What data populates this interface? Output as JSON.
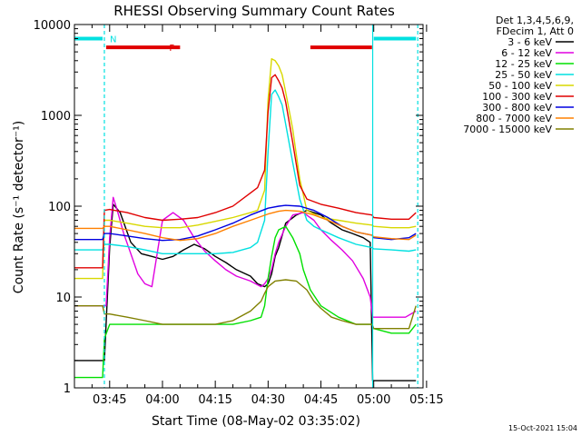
{
  "chart_data": {
    "type": "line",
    "title": "RHESSI Observing Summary Count Rates",
    "xlabel": "Start Time (08-May-02 03:35:02)",
    "ylabel": "Count Rate (s⁻¹ detector⁻¹)",
    "x_scale": "time (minutes after 03:35:02)",
    "y_scale": "log",
    "xlim": [
      0,
      99
    ],
    "ylim": [
      1,
      10000
    ],
    "xticks": [
      {
        "label": "03:45",
        "value": 10
      },
      {
        "label": "04:00",
        "value": 25
      },
      {
        "label": "04:15",
        "value": 40
      },
      {
        "label": "04:30",
        "value": 55
      },
      {
        "label": "04:45",
        "value": 70
      },
      {
        "label": "05:00",
        "value": 85
      },
      {
        "label": "05:15",
        "value": 100
      }
    ],
    "yticks": [
      {
        "label": "1",
        "value": 1
      },
      {
        "label": "10",
        "value": 10
      },
      {
        "label": "100",
        "value": 100
      },
      {
        "label": "1000",
        "value": 1000
      },
      {
        "label": "10000",
        "value": 10000
      }
    ],
    "legend_position": "right, outside plot",
    "legend_header": [
      "Det 1,3,4,5,6,9,",
      "FDecim 1, Att 0"
    ],
    "flags": [
      {
        "label": "N",
        "color": "#00e0e0",
        "segments": [
          [
            0,
            8
          ],
          [
            85,
            97
          ]
        ],
        "y": 7000
      },
      {
        "label": "F",
        "color": "#e00000",
        "segments": [
          [
            9,
            30
          ],
          [
            67,
            84.5
          ]
        ],
        "y": 5600
      }
    ],
    "vlines": [
      {
        "x": 8.5,
        "color": "#00e0e0",
        "dashed": true
      },
      {
        "x": 84.7,
        "color": "#00e0e0",
        "dashed": false
      },
      {
        "x": 97.5,
        "color": "#00e0e0",
        "dashed": true
      }
    ],
    "series": [
      {
        "name": "3 - 6 keV",
        "color": "#000000",
        "x": [
          0,
          5,
          8,
          8.5,
          10,
          11,
          13,
          16,
          19,
          22,
          25,
          28,
          31,
          34,
          37,
          40,
          43,
          46,
          50,
          52,
          54,
          55,
          56,
          57,
          58,
          60,
          63,
          66,
          68,
          70,
          73,
          76,
          79,
          82,
          84,
          84.7,
          86,
          90,
          94,
          97
        ],
        "y": [
          2,
          2,
          2,
          2,
          35,
          105,
          85,
          40,
          30,
          28,
          26,
          28,
          33,
          38,
          34,
          28,
          24,
          20,
          17,
          14,
          13,
          14,
          18,
          28,
          35,
          65,
          80,
          90,
          85,
          80,
          65,
          55,
          50,
          45,
          40,
          1.2,
          1.2,
          1.2,
          1.2,
          1.2
        ]
      },
      {
        "name": "6 - 12 keV",
        "color": "#e000e0",
        "x": [
          0,
          5,
          8,
          9,
          10,
          11,
          12,
          14,
          16,
          18,
          20,
          22,
          25,
          28,
          31,
          34,
          37,
          40,
          43,
          46,
          50,
          53,
          54,
          55,
          56,
          57,
          58,
          60,
          62,
          65,
          68,
          70,
          73,
          76,
          79,
          82,
          84,
          84.7,
          86,
          90,
          94,
          97
        ],
        "y": [
          8,
          8,
          8,
          8,
          45,
          125,
          95,
          50,
          30,
          18,
          14,
          13,
          70,
          85,
          70,
          45,
          32,
          25,
          20,
          17,
          15,
          13,
          14,
          16,
          20,
          30,
          40,
          60,
          80,
          85,
          70,
          55,
          42,
          33,
          25,
          16,
          10,
          6,
          6,
          6,
          6,
          7
        ]
      },
      {
        "name": "12 - 25 keV",
        "color": "#00e000",
        "x": [
          0,
          5,
          8,
          8.5,
          10,
          15,
          20,
          25,
          30,
          35,
          40,
          45,
          50,
          53,
          54,
          55,
          56,
          57,
          58,
          60,
          62,
          64,
          65,
          67,
          70,
          75,
          80,
          84.5,
          85,
          90,
          95,
          97
        ],
        "y": [
          1.3,
          1.3,
          1.3,
          3.5,
          5,
          5,
          5,
          5,
          5,
          5,
          5,
          5,
          5.5,
          6,
          8,
          16,
          28,
          45,
          55,
          60,
          45,
          30,
          20,
          12,
          8,
          6,
          5,
          5,
          4.5,
          4,
          4,
          5
        ]
      },
      {
        "name": "25 - 50 keV",
        "color": "#00e0e0",
        "x": [
          0,
          5,
          8,
          8.5,
          10,
          15,
          20,
          25,
          30,
          35,
          40,
          45,
          50,
          52,
          54,
          55,
          56,
          57,
          58,
          59,
          60,
          62,
          64,
          66,
          68,
          70,
          75,
          80,
          84.5,
          85,
          90,
          95,
          97
        ],
        "y": [
          33,
          33,
          33,
          38,
          38,
          36,
          33,
          30,
          30,
          30,
          30,
          31,
          35,
          40,
          70,
          400,
          1700,
          1900,
          1600,
          1300,
          800,
          300,
          120,
          70,
          60,
          55,
          45,
          38,
          35,
          34,
          33,
          32,
          33
        ]
      },
      {
        "name": "50 - 100 keV",
        "color": "#d8d800",
        "x": [
          0,
          5,
          8,
          8.5,
          10,
          15,
          20,
          25,
          30,
          35,
          40,
          45,
          50,
          52,
          54,
          55,
          56,
          57,
          58,
          59,
          60,
          62,
          64,
          66,
          70,
          75,
          80,
          84.5,
          85,
          90,
          95,
          97
        ],
        "y": [
          16,
          16,
          16,
          70,
          70,
          65,
          60,
          58,
          58,
          62,
          68,
          75,
          85,
          90,
          150,
          1500,
          4200,
          4000,
          3500,
          2800,
          1800,
          700,
          200,
          90,
          75,
          70,
          65,
          62,
          60,
          58,
          58,
          60
        ]
      },
      {
        "name": "100 - 300 keV",
        "color": "#e00000",
        "x": [
          0,
          5,
          8,
          8.5,
          10,
          15,
          20,
          25,
          30,
          35,
          40,
          45,
          50,
          52,
          54,
          55,
          56,
          57,
          58,
          59,
          60,
          62,
          64,
          66,
          70,
          75,
          80,
          84.5,
          85,
          90,
          95,
          97
        ],
        "y": [
          21,
          21,
          21,
          90,
          92,
          85,
          75,
          70,
          72,
          75,
          85,
          100,
          140,
          160,
          250,
          1100,
          2600,
          2800,
          2400,
          2000,
          1400,
          500,
          170,
          120,
          105,
          95,
          85,
          80,
          75,
          72,
          72,
          85
        ]
      },
      {
        "name": "300 - 800 keV",
        "color": "#0000e0",
        "x": [
          0,
          5,
          8,
          8.5,
          10,
          15,
          20,
          25,
          30,
          35,
          40,
          45,
          50,
          55,
          58,
          60,
          64,
          68,
          72,
          76,
          80,
          84.5,
          85,
          90,
          95,
          97
        ],
        "y": [
          43,
          43,
          43,
          50,
          50,
          47,
          44,
          42,
          43,
          47,
          55,
          65,
          80,
          95,
          100,
          102,
          100,
          90,
          75,
          60,
          52,
          48,
          45,
          43,
          45,
          50
        ]
      },
      {
        "name": "800 - 7000 keV",
        "color": "#ff8000",
        "x": [
          0,
          5,
          8,
          8.5,
          10,
          15,
          20,
          25,
          30,
          35,
          40,
          45,
          50,
          55,
          58,
          60,
          64,
          68,
          72,
          76,
          80,
          84.5,
          85,
          90,
          95,
          97
        ],
        "y": [
          57,
          57,
          57,
          60,
          60,
          55,
          50,
          45,
          42,
          44,
          50,
          60,
          70,
          82,
          88,
          90,
          88,
          80,
          70,
          60,
          52,
          48,
          46,
          44,
          43,
          48
        ]
      },
      {
        "name": "7000 - 15000 keV",
        "color": "#808000",
        "x": [
          0,
          5,
          8,
          8.5,
          10,
          15,
          20,
          25,
          30,
          35,
          40,
          45,
          50,
          53,
          54,
          55,
          57,
          60,
          63,
          66,
          68,
          70,
          73,
          76,
          80,
          84.5,
          85,
          90,
          95,
          97
        ],
        "y": [
          8,
          8,
          8,
          6.5,
          6.5,
          6,
          5.5,
          5,
          5,
          5,
          5,
          5.5,
          7,
          9,
          11,
          13,
          15,
          15.5,
          15,
          12,
          9,
          7.5,
          6,
          5.5,
          5,
          5,
          4.5,
          4.5,
          4.5,
          8
        ]
      }
    ],
    "timestamp": "15-Oct-2021 15:04"
  }
}
